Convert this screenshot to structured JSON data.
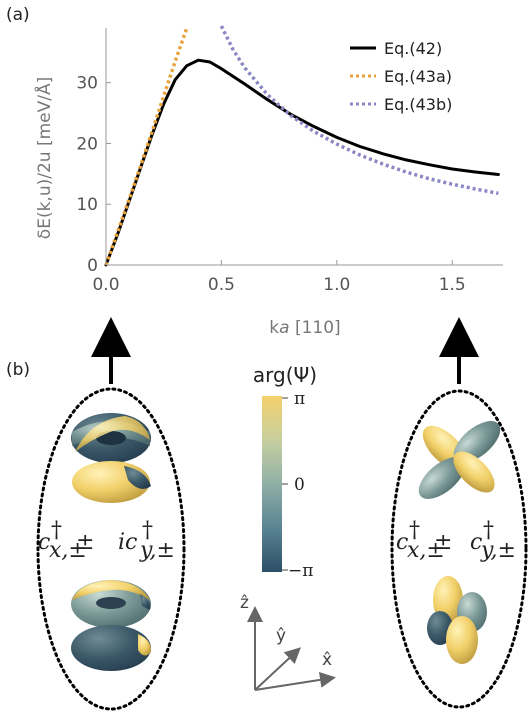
{
  "panel_a": {
    "label": "(a)",
    "chart_data": {
      "type": "line",
      "xlabel_k": "k",
      "xlabel_a": "a",
      "xlabel_tail": " [110]",
      "ylabel": "δE(k,u)/2u [meV/Å]",
      "xlim": [
        0,
        1.72
      ],
      "ylim": [
        0,
        39
      ],
      "xticks": [
        "0.0",
        "0.5",
        "1.0",
        "1.5"
      ],
      "yticks": [
        "0",
        "10",
        "20",
        "30"
      ],
      "xtick_values": [
        0,
        0.5,
        1.0,
        1.5
      ],
      "ytick_values": [
        0,
        10,
        20,
        30
      ],
      "legend_position": "top-right",
      "series": [
        {
          "name": "Eq.(42)",
          "color": "#000000",
          "dash": "solid",
          "x": [
            0.0,
            0.05,
            0.1,
            0.15,
            0.2,
            0.25,
            0.3,
            0.35,
            0.4,
            0.45,
            0.5,
            0.6,
            0.7,
            0.8,
            0.9,
            1.0,
            1.1,
            1.2,
            1.3,
            1.4,
            1.5,
            1.6,
            1.7
          ],
          "y": [
            0,
            5,
            10.5,
            16,
            21.5,
            26.5,
            30.5,
            32.8,
            33.7,
            33.4,
            32.3,
            29.8,
            27.2,
            24.8,
            22.8,
            21.0,
            19.5,
            18.3,
            17.3,
            16.5,
            15.8,
            15.3,
            14.9
          ]
        },
        {
          "name": "Eq.(43a)",
          "color": "#e8a33a",
          "dash": "dotted",
          "x": [
            0.0,
            0.05,
            0.1,
            0.15,
            0.2,
            0.25,
            0.3,
            0.35
          ],
          "y": [
            0,
            5.4,
            10.8,
            16.3,
            22.0,
            27.8,
            33.5,
            39.0
          ]
        },
        {
          "name": "Eq.(43b)",
          "color": "#8a87c4",
          "dash": "dotted",
          "x": [
            0.5,
            0.55,
            0.6,
            0.7,
            0.8,
            0.9,
            1.0,
            1.1,
            1.2,
            1.3,
            1.4,
            1.5,
            1.6,
            1.7
          ],
          "y": [
            39.5,
            35.5,
            32.5,
            28.0,
            24.6,
            22.0,
            19.9,
            18.1,
            16.6,
            15.3,
            14.2,
            13.3,
            12.5,
            11.8
          ]
        }
      ]
    }
  },
  "panel_b": {
    "label": "(b)",
    "colorbar": {
      "title": "arg(Ψ)",
      "top_label": "π",
      "mid_label": "0",
      "bottom_label": "−π",
      "colors": [
        "#f4d06a",
        "#c8cfa0",
        "#8fb0a6",
        "#5a8494",
        "#2b4f66"
      ]
    },
    "left_state": {
      "c1": "c",
      "sub1": "x,±",
      "op": " ± ",
      "i": "i",
      "c2": "c",
      "sub2": "y,±",
      "dagger": "†"
    },
    "right_state": {
      "c1": "c",
      "sub1": "x,±",
      "op": " ± ",
      "c2": "c",
      "sub2": "y,±",
      "dagger": "†"
    },
    "axes": {
      "z": "ẑ",
      "y": "ŷ",
      "x": "x̂"
    },
    "orbital_colors": {
      "yellow": "#f2d069",
      "teal": "#7c9a98",
      "dark": "#2f4a5c"
    }
  }
}
